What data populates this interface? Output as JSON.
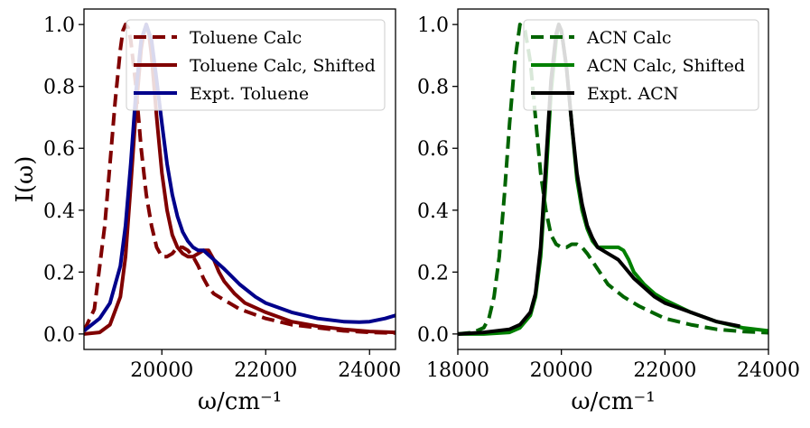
{
  "chart_data": [
    {
      "type": "line",
      "title": "",
      "xlabel": "ω/cm⁻¹",
      "ylabel": "I(ω)",
      "xlim": [
        18500,
        24500
      ],
      "ylim": [
        -0.05,
        1.05
      ],
      "xticks": [
        20000,
        22000,
        24000
      ],
      "xtick_labels": [
        "20000",
        "22000",
        "24000"
      ],
      "yticks": [
        0.0,
        0.2,
        0.4,
        0.6,
        0.8,
        1.0
      ],
      "ytick_labels": [
        "0.0",
        "0.2",
        "0.4",
        "0.6",
        "0.8",
        "1.0"
      ],
      "legend_position": "top-right",
      "series": [
        {
          "name": "Toluene Calc",
          "color": "#800000",
          "style": "dashed",
          "x": [
            18500,
            18700,
            18900,
            19000,
            19100,
            19200,
            19250,
            19300,
            19350,
            19400,
            19500,
            19600,
            19700,
            19800,
            19900,
            20000,
            20100,
            20200,
            20300,
            20400,
            20500,
            20600,
            20700,
            20800,
            20900,
            21000,
            21200,
            21500,
            22000,
            22500,
            23000,
            23500,
            24000,
            24500
          ],
          "y": [
            0.01,
            0.08,
            0.35,
            0.55,
            0.75,
            0.92,
            0.98,
            1.0,
            0.99,
            0.95,
            0.8,
            0.6,
            0.45,
            0.35,
            0.28,
            0.25,
            0.25,
            0.26,
            0.28,
            0.28,
            0.27,
            0.25,
            0.22,
            0.18,
            0.15,
            0.13,
            0.11,
            0.08,
            0.05,
            0.03,
            0.02,
            0.01,
            0.005,
            0.003
          ]
        },
        {
          "name": "Toluene Calc, Shifted",
          "color": "#800000",
          "style": "solid",
          "x": [
            18500,
            18800,
            19000,
            19200,
            19300,
            19400,
            19500,
            19600,
            19650,
            19700,
            19750,
            19800,
            19900,
            20000,
            20100,
            20200,
            20300,
            20400,
            20500,
            20600,
            20700,
            20800,
            20900,
            21000,
            21100,
            21200,
            21400,
            21600,
            22000,
            22500,
            23000,
            23500,
            24000,
            24500
          ],
          "y": [
            0.0,
            0.005,
            0.03,
            0.12,
            0.25,
            0.48,
            0.72,
            0.92,
            0.97,
            1.0,
            0.97,
            0.9,
            0.7,
            0.52,
            0.4,
            0.32,
            0.28,
            0.26,
            0.25,
            0.25,
            0.26,
            0.27,
            0.27,
            0.24,
            0.2,
            0.17,
            0.13,
            0.1,
            0.07,
            0.04,
            0.025,
            0.015,
            0.008,
            0.005
          ]
        },
        {
          "name": "Expt. Toluene",
          "color": "#00008b",
          "style": "solid",
          "x": [
            18500,
            18800,
            19000,
            19200,
            19300,
            19400,
            19500,
            19600,
            19700,
            19800,
            19900,
            20000,
            20100,
            20200,
            20300,
            20400,
            20500,
            20600,
            20700,
            20800,
            21000,
            21200,
            21500,
            21800,
            22000,
            22500,
            23000,
            23500,
            23800,
            24000,
            24300,
            24500
          ],
          "y": [
            0.01,
            0.05,
            0.1,
            0.22,
            0.35,
            0.55,
            0.78,
            0.95,
            1.0,
            0.95,
            0.82,
            0.68,
            0.55,
            0.45,
            0.38,
            0.33,
            0.3,
            0.28,
            0.27,
            0.27,
            0.24,
            0.21,
            0.16,
            0.12,
            0.1,
            0.07,
            0.05,
            0.04,
            0.038,
            0.04,
            0.05,
            0.06
          ]
        }
      ]
    },
    {
      "type": "line",
      "title": "",
      "xlabel": "ω/cm⁻¹",
      "ylabel": "",
      "xlim": [
        18000,
        24000
      ],
      "ylim": [
        -0.05,
        1.05
      ],
      "xticks": [
        18000,
        20000,
        22000,
        24000
      ],
      "xtick_labels": [
        "18000",
        "20000",
        "22000",
        "24000"
      ],
      "yticks": [
        0.0,
        0.2,
        0.4,
        0.6,
        0.8,
        1.0
      ],
      "ytick_labels": [
        "0.0",
        "0.2",
        "0.4",
        "0.6",
        "0.8",
        "1.0"
      ],
      "legend_position": "top-right",
      "series": [
        {
          "name": "ACN Calc",
          "color": "#006400",
          "style": "dashed",
          "x": [
            18000,
            18300,
            18500,
            18600,
            18700,
            18800,
            18900,
            19000,
            19100,
            19200,
            19300,
            19400,
            19500,
            19600,
            19700,
            19800,
            19900,
            20000,
            20100,
            20200,
            20300,
            20400,
            20500,
            20700,
            20900,
            21200,
            21500,
            22000,
            22500,
            23000,
            23500,
            24000
          ],
          "y": [
            0.0,
            0.005,
            0.02,
            0.05,
            0.12,
            0.25,
            0.45,
            0.68,
            0.88,
            1.0,
            0.98,
            0.88,
            0.7,
            0.52,
            0.4,
            0.32,
            0.29,
            0.28,
            0.28,
            0.29,
            0.29,
            0.28,
            0.26,
            0.21,
            0.16,
            0.12,
            0.09,
            0.05,
            0.03,
            0.015,
            0.008,
            0.004
          ]
        },
        {
          "name": "ACN Calc, Shifted",
          "color": "#008000",
          "style": "solid",
          "x": [
            18000,
            18500,
            19000,
            19200,
            19400,
            19500,
            19600,
            19700,
            19800,
            19900,
            19950,
            20000,
            20100,
            20200,
            20300,
            20400,
            20500,
            20600,
            20700,
            20800,
            20900,
            21000,
            21100,
            21200,
            21300,
            21400,
            21600,
            21800,
            22000,
            22500,
            23000,
            23500,
            24000
          ],
          "y": [
            0.0,
            0.0,
            0.005,
            0.02,
            0.06,
            0.12,
            0.25,
            0.5,
            0.78,
            0.95,
            1.0,
            0.98,
            0.86,
            0.68,
            0.5,
            0.4,
            0.34,
            0.3,
            0.28,
            0.28,
            0.28,
            0.28,
            0.28,
            0.27,
            0.24,
            0.2,
            0.16,
            0.13,
            0.11,
            0.07,
            0.04,
            0.02,
            0.01
          ]
        },
        {
          "name": "Expt. ACN",
          "color": "#000000",
          "style": "solid",
          "x": [
            18000,
            18500,
            19000,
            19200,
            19400,
            19500,
            19600,
            19700,
            19800,
            19900,
            19950,
            20000,
            20100,
            20200,
            20300,
            20400,
            20500,
            20600,
            20700,
            20800,
            20900,
            21000,
            21100,
            21200,
            21400,
            21600,
            21800,
            22000,
            22500,
            23000,
            23450
          ],
          "y": [
            0.0,
            0.005,
            0.015,
            0.03,
            0.07,
            0.13,
            0.28,
            0.55,
            0.82,
            0.97,
            1.0,
            0.98,
            0.86,
            0.68,
            0.52,
            0.42,
            0.35,
            0.31,
            0.28,
            0.27,
            0.26,
            0.25,
            0.24,
            0.22,
            0.18,
            0.15,
            0.12,
            0.1,
            0.07,
            0.04,
            0.025
          ]
        }
      ]
    }
  ]
}
